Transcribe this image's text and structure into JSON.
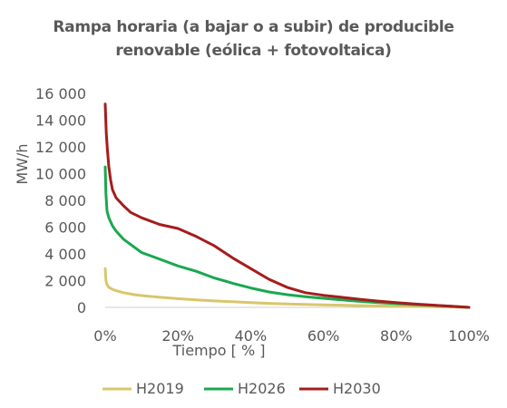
{
  "chart_data": {
    "type": "line",
    "title": "Rampa horaria (a bajar o a subir) de producible renovable (eólica + fotovoltaica)",
    "title_lines": [
      "Rampa horaria (a bajar o a subir) de producible",
      "renovable (eólica + fotovoltaica)"
    ],
    "xlabel": "Tiempo [ % ]",
    "ylabel": "MW/h",
    "xlim": [
      0,
      100
    ],
    "ylim": [
      0,
      16000
    ],
    "x_ticks": [
      0,
      20,
      40,
      60,
      80,
      100
    ],
    "x_tick_labels": [
      "0%",
      "20%",
      "40%",
      "60%",
      "80%",
      "100%"
    ],
    "y_ticks": [
      0,
      2000,
      4000,
      6000,
      8000,
      10000,
      12000,
      14000,
      16000
    ],
    "y_tick_labels": [
      "0",
      "2 000",
      "4 000",
      "6 000",
      "8 000",
      "10 000",
      "12 000",
      "14 000",
      "16 000"
    ],
    "grid": false,
    "legend_position": "bottom",
    "series": [
      {
        "name": "H2019",
        "color": "#d9c66a",
        "points": [
          [
            0,
            2900
          ],
          [
            0.2,
            2000
          ],
          [
            0.5,
            1700
          ],
          [
            1,
            1500
          ],
          [
            2,
            1350
          ],
          [
            3,
            1250
          ],
          [
            5,
            1100
          ],
          [
            8,
            950
          ],
          [
            10,
            880
          ],
          [
            15,
            750
          ],
          [
            20,
            650
          ],
          [
            25,
            560
          ],
          [
            30,
            480
          ],
          [
            35,
            420
          ],
          [
            40,
            360
          ],
          [
            45,
            300
          ],
          [
            50,
            260
          ],
          [
            55,
            220
          ],
          [
            60,
            190
          ],
          [
            65,
            160
          ],
          [
            70,
            130
          ],
          [
            75,
            110
          ],
          [
            80,
            90
          ],
          [
            85,
            70
          ],
          [
            90,
            50
          ],
          [
            95,
            30
          ],
          [
            100,
            0
          ]
        ]
      },
      {
        "name": "H2026",
        "color": "#1aa84f",
        "points": [
          [
            0,
            10500
          ],
          [
            0.2,
            8500
          ],
          [
            0.5,
            7200
          ],
          [
            1,
            6700
          ],
          [
            2,
            6100
          ],
          [
            3,
            5700
          ],
          [
            5,
            5100
          ],
          [
            7,
            4700
          ],
          [
            10,
            4100
          ],
          [
            15,
            3600
          ],
          [
            20,
            3100
          ],
          [
            25,
            2700
          ],
          [
            30,
            2200
          ],
          [
            35,
            1800
          ],
          [
            40,
            1450
          ],
          [
            45,
            1150
          ],
          [
            50,
            950
          ],
          [
            55,
            800
          ],
          [
            60,
            680
          ],
          [
            65,
            560
          ],
          [
            70,
            450
          ],
          [
            75,
            360
          ],
          [
            80,
            280
          ],
          [
            85,
            210
          ],
          [
            90,
            150
          ],
          [
            95,
            80
          ],
          [
            100,
            0
          ]
        ]
      },
      {
        "name": "H2030",
        "color": "#a61c1c",
        "points": [
          [
            0,
            15200
          ],
          [
            0.3,
            13000
          ],
          [
            0.6,
            11800
          ],
          [
            1,
            10500
          ],
          [
            1.5,
            9500
          ],
          [
            2,
            8800
          ],
          [
            3,
            8200
          ],
          [
            5,
            7600
          ],
          [
            7,
            7100
          ],
          [
            10,
            6700
          ],
          [
            15,
            6200
          ],
          [
            20,
            5900
          ],
          [
            25,
            5300
          ],
          [
            30,
            4600
          ],
          [
            35,
            3700
          ],
          [
            40,
            2900
          ],
          [
            45,
            2100
          ],
          [
            50,
            1500
          ],
          [
            55,
            1100
          ],
          [
            60,
            900
          ],
          [
            65,
            750
          ],
          [
            70,
            600
          ],
          [
            75,
            470
          ],
          [
            80,
            350
          ],
          [
            85,
            250
          ],
          [
            90,
            170
          ],
          [
            95,
            90
          ],
          [
            100,
            0
          ]
        ]
      }
    ]
  }
}
